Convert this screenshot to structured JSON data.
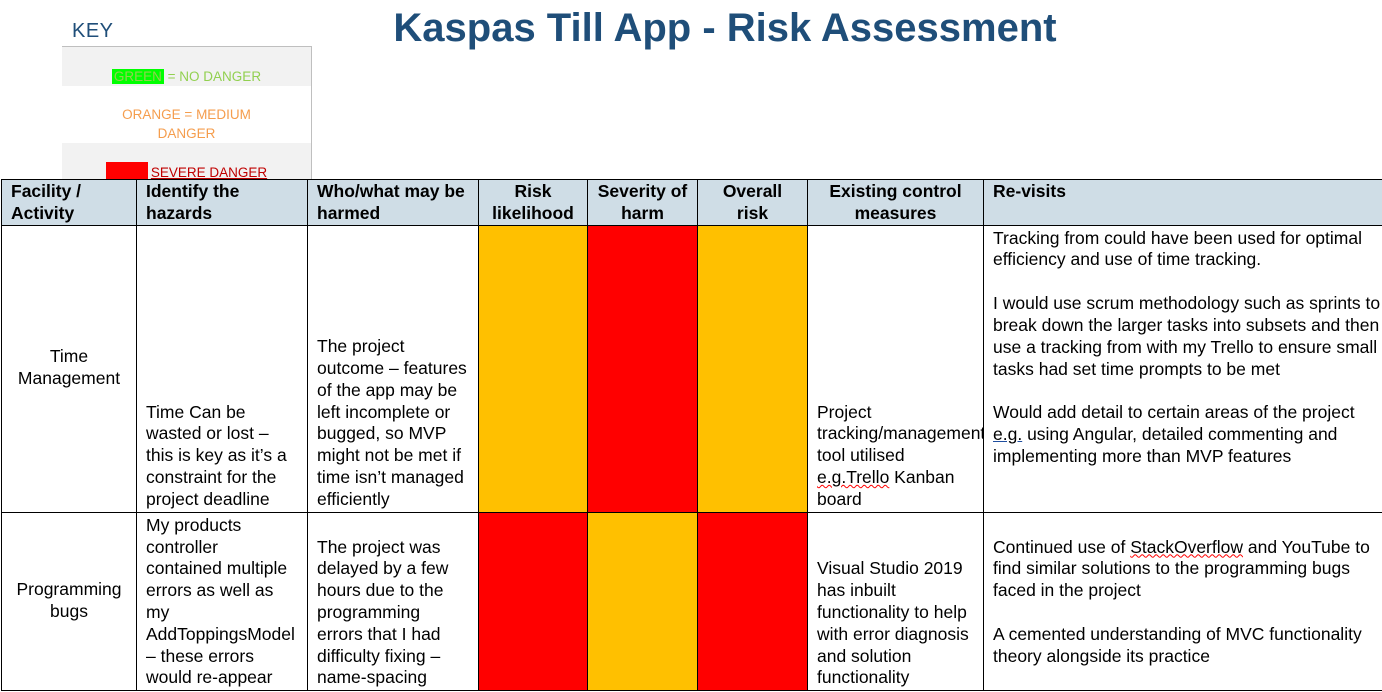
{
  "title": "Kaspas Till App - Risk Assessment",
  "key": {
    "title": "KEY",
    "green": {
      "swatch_text": "GREEN",
      "rest": " = NO DANGER"
    },
    "orange": {
      "text": "ORANGE = MEDIUM DANGER"
    },
    "red": {
      "text": "SEVERE DANGER"
    }
  },
  "colors": {
    "low": "#00ff00",
    "medium": "#ffc000",
    "severe": "#ff0000",
    "header_bg": "#cfdde6",
    "title": "#1f4e79"
  },
  "headers": [
    "Facility / Activity",
    "Identify the hazards",
    "Who/what may be harmed",
    "Risk likelihood",
    "Severity of harm",
    "Overall risk",
    "Existing control measures",
    "Re-visits"
  ],
  "rows": [
    {
      "activity": "Time Management",
      "hazards": "Time Can be wasted or lost – this is key as it’s a constraint for the project deadline",
      "harmed": "The project outcome – features of the app may be left incomplete or bugged, so MVP might not be met if time isn’t managed efficiently",
      "risk_likelihood": "medium",
      "severity_of_harm": "severe",
      "overall_risk": "medium",
      "controls": "Project tracking/management tool utilised e.g.Trello Kanban board",
      "revisits": [
        "Tracking from could have been used for optimal efficiency and use of time tracking.",
        "I would use scrum methodology such as sprints to break down the larger tasks into subsets and then use a tracking from with my Trello to ensure small tasks had set time prompts to be met",
        "Would add detail to certain areas of the project e.g. using Angular, detailed commenting and implementing more than MVP features"
      ]
    },
    {
      "activity": "Programming bugs",
      "hazards": "My products controller contained multiple errors as well as my AddToppingsModel – these errors would re-appear",
      "harmed": "The project was delayed by a few hours due to the programming errors that I had difficulty fixing – name-spacing",
      "risk_likelihood": "severe",
      "severity_of_harm": "medium",
      "overall_risk": "severe",
      "controls": "Visual Studio 2019 has inbuilt functionality to help with error diagnosis and solution functionality",
      "revisits": [
        "Continued use of StackOverflow and YouTube to find similar solutions to the programming bugs faced in the project",
        "A cemented understanding of MVC functionality theory alongside its practice"
      ]
    }
  ]
}
